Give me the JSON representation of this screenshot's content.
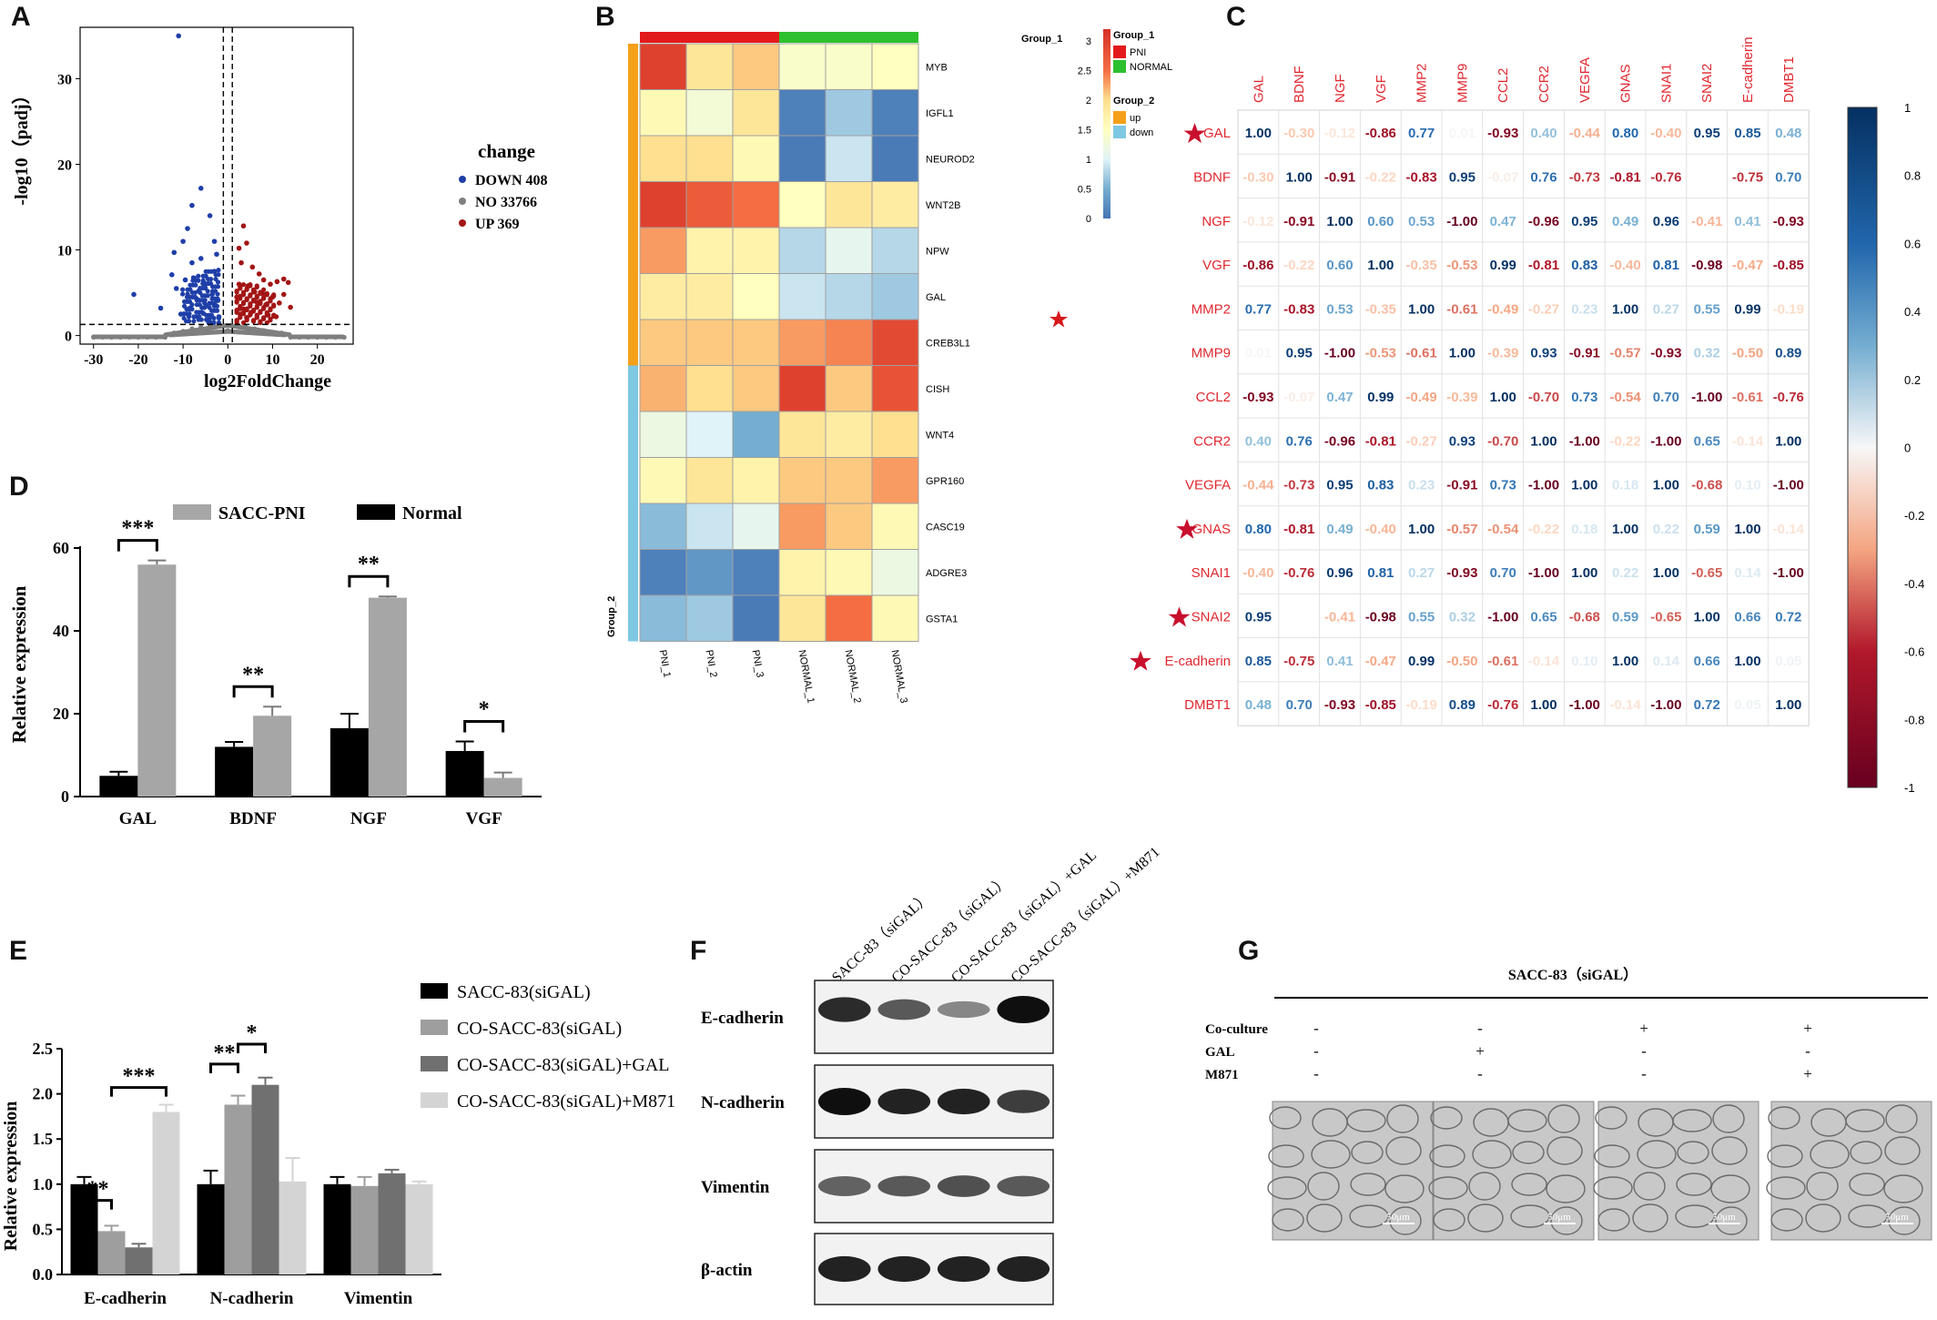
{
  "panel_labels": {
    "a": "A",
    "b": "B",
    "c": "C",
    "d": "D",
    "e": "E",
    "f": "F",
    "g": "G"
  },
  "chart_data": [
    {
      "id": "A",
      "type": "scatter",
      "title": "",
      "xlabel": "log2FoldChange",
      "ylabel": "-log10（padj）",
      "xlim": [
        -33,
        28
      ],
      "ylim": [
        -1,
        36
      ],
      "xticks": [
        "-30",
        "-20",
        "-10",
        "0",
        "10",
        "20"
      ],
      "yticks": [
        "0",
        "10",
        "20",
        "30"
      ],
      "legend": {
        "title": "change",
        "placement": "right",
        "entries": [
          {
            "label": "DOWN 408",
            "color": "#1f3fa8"
          },
          {
            "label": "NO 33766",
            "color": "#7f7f7f"
          },
          {
            "label": "UP 369",
            "color": "#a31515"
          }
        ]
      },
      "thresholds": {
        "x": [
          -1,
          1
        ],
        "y": 1.3
      },
      "series": [
        {
          "name": "DOWN 408",
          "color": "#1f3fa8",
          "points": [
            [
              -11,
              35
            ],
            [
              -21,
              4.8
            ],
            [
              -15,
              3.2
            ],
            [
              -12,
              9.7
            ],
            [
              -10,
              11
            ],
            [
              -9,
              12.5
            ],
            [
              -8,
              15.2
            ],
            [
              -6,
              17.2
            ],
            [
              -4,
              14
            ],
            [
              -3,
              11
            ],
            [
              -2.5,
              9.5
            ],
            [
              -6,
              9
            ],
            [
              -8,
              8.5
            ],
            [
              -12.5,
              7.1
            ],
            [
              -7,
              4.3
            ],
            [
              -5,
              6
            ],
            [
              -3,
              7.5
            ],
            [
              -4.5,
              3.5
            ],
            [
              -8.5,
              3.2
            ],
            [
              -10.5,
              2.5
            ],
            [
              -2,
              2.2
            ],
            [
              -6.5,
              5.2
            ],
            [
              -3.5,
              4.8
            ],
            [
              -9.5,
              6.5
            ],
            [
              -5.5,
              2.6
            ],
            [
              -7.5,
              6.7
            ],
            [
              -2.2,
              4.1
            ],
            [
              -11.5,
              5.5
            ],
            [
              -4,
              2.1
            ]
          ]
        },
        {
          "name": "UP 369",
          "color": "#a31515",
          "points": [
            [
              3.5,
              12.8
            ],
            [
              4.2,
              10.8
            ],
            [
              2.5,
              10.2
            ],
            [
              3,
              8.5
            ],
            [
              5.5,
              8
            ],
            [
              7,
              7.2
            ],
            [
              8,
              6.5
            ],
            [
              9.5,
              6
            ],
            [
              11,
              6.3
            ],
            [
              12.5,
              6.6
            ],
            [
              13.5,
              6.2
            ],
            [
              14,
              3.3
            ],
            [
              6,
              5.1
            ],
            [
              4.5,
              5.8
            ],
            [
              2.5,
              6
            ],
            [
              10,
              4.5
            ],
            [
              8.5,
              3.6
            ],
            [
              6.5,
              3.9
            ],
            [
              3.5,
              3.1
            ],
            [
              2,
              4.5
            ],
            [
              5.2,
              2.7
            ],
            [
              11.5,
              3.8
            ],
            [
              12.5,
              4.8
            ],
            [
              9,
              2.4
            ],
            [
              7.8,
              4.9
            ],
            [
              4.2,
              2.1
            ],
            [
              2.8,
              2.5
            ],
            [
              10.8,
              2.2
            ]
          ]
        },
        {
          "name": "NO 33766",
          "color": "#7f7f7f",
          "points": [
            [
              -30,
              -0.2
            ],
            [
              -28,
              -0.2
            ],
            [
              -26,
              -0.2
            ],
            [
              -24,
              -0.2
            ],
            [
              -22,
              -0.2
            ],
            [
              -20,
              -0.2
            ],
            [
              -18,
              -0.2
            ],
            [
              -16,
              -0.2
            ],
            [
              -14,
              -0.2
            ],
            [
              -12,
              0.3
            ],
            [
              -10,
              0.5
            ],
            [
              -8,
              0.8
            ],
            [
              -6,
              1
            ],
            [
              -4,
              1.2
            ],
            [
              -2,
              1.1
            ],
            [
              0,
              0.6
            ],
            [
              2,
              1.1
            ],
            [
              4,
              1
            ],
            [
              6,
              0.8
            ],
            [
              8,
              0.6
            ],
            [
              10,
              0.4
            ],
            [
              12,
              0.3
            ],
            [
              14,
              -0.2
            ],
            [
              16,
              -0.2
            ],
            [
              18,
              -0.2
            ],
            [
              20,
              -0.2
            ],
            [
              22,
              -0.2
            ],
            [
              24,
              -0.2
            ],
            [
              26,
              -0.2
            ]
          ]
        }
      ]
    },
    {
      "id": "B",
      "type": "heatmap",
      "columns": [
        "PNI_1",
        "PNI_2",
        "PNI_3",
        "NORMAL_1",
        "NORMAL_2",
        "NORMAL_3"
      ],
      "rows": [
        "MYB",
        "IGFL1",
        "NEUROD2",
        "WNT2B",
        "NPW",
        "GAL",
        "CREB3L1",
        "CISH",
        "WNT4",
        "GPR160",
        "CASC19",
        "ADGRE3",
        "GSTA1"
      ],
      "row_star": "GAL",
      "group1": {
        "title": "Group_1",
        "values": [
          "PNI",
          "PNI",
          "PNI",
          "NORMAL",
          "NORMAL",
          "NORMAL"
        ],
        "legend": [
          {
            "label": "PNI",
            "color": "#e31a1c"
          },
          {
            "label": "NORMAL",
            "color": "#2ec02e"
          }
        ]
      },
      "group2": {
        "title": "Group_2",
        "values": [
          "up",
          "up",
          "up",
          "up",
          "up",
          "up",
          "up",
          "down",
          "down",
          "down",
          "down",
          "down",
          "down"
        ],
        "legend": [
          {
            "label": "up",
            "color": "#f5a01a"
          },
          {
            "label": "down",
            "color": "#7ec8e3"
          }
        ]
      },
      "colorbar": {
        "min": 0,
        "max": 3.2,
        "ticks": [
          "0",
          "0.5",
          "1",
          "1.5",
          "2",
          "2.5",
          "3"
        ]
      },
      "values": [
        [
          3.0,
          1.9,
          2.1,
          1.4,
          1.4,
          1.5
        ],
        [
          1.6,
          1.3,
          1.9,
          0.1,
          0.7,
          0.1
        ],
        [
          2.0,
          2.0,
          1.6,
          0.05,
          0.9,
          0.05
        ],
        [
          3.0,
          2.7,
          2.5,
          1.5,
          1.9,
          1.8
        ],
        [
          2.3,
          1.7,
          1.7,
          0.8,
          1.1,
          0.8
        ],
        [
          1.8,
          1.8,
          1.5,
          0.9,
          0.8,
          0.7
        ],
        [
          2.1,
          2.1,
          2.1,
          2.3,
          2.4,
          2.9
        ],
        [
          2.2,
          2.0,
          2.1,
          3.0,
          2.1,
          2.8
        ],
        [
          1.2,
          1.0,
          0.5,
          1.9,
          1.8,
          2.0
        ],
        [
          1.6,
          1.9,
          1.7,
          2.1,
          2.1,
          2.3
        ],
        [
          0.6,
          0.9,
          1.1,
          2.3,
          2.1,
          1.6
        ],
        [
          0.1,
          0.3,
          0.1,
          1.7,
          1.6,
          1.2
        ],
        [
          0.6,
          0.7,
          0.05,
          1.9,
          2.5,
          1.6
        ]
      ]
    },
    {
      "id": "C",
      "type": "table",
      "genes": [
        "GAL",
        "BDNF",
        "NGF",
        "VGF",
        "MMP2",
        "MMP9",
        "CCL2",
        "CCR2",
        "VEGFA",
        "GNAS",
        "SNAI1",
        "SNAI2",
        "E-cadherin",
        "DMBT1"
      ],
      "starred": [
        "GAL",
        "GNAS",
        "SNAI2",
        "E-cadherin"
      ],
      "colorbar": {
        "min": -1,
        "max": 1,
        "ticks": [
          "1",
          "0.8",
          "0.6",
          "0.4",
          "0.2",
          "0",
          "-0.2",
          "-0.4",
          "-0.6",
          "-0.8",
          "-1"
        ]
      },
      "matrix": [
        [
          "1.00",
          "-0.30",
          "-0.12",
          "-0.86",
          "0.77",
          "0.01",
          "-0.93",
          "0.40",
          "-0.44",
          "0.80",
          "-0.40",
          "0.95",
          "0.85",
          "0.48"
        ],
        [
          "-0.30",
          "1.00",
          "-0.91",
          "-0.22",
          "-0.83",
          "0.95",
          "-0.07",
          "0.76",
          "-0.73",
          "-0.81",
          "-0.76",
          "",
          "-0.75",
          "0.70"
        ],
        [
          "-0.12",
          "-0.91",
          "1.00",
          "0.60",
          "0.53",
          "-1.00",
          "0.47",
          "-0.96",
          "0.95",
          "0.49",
          "0.96",
          "-0.41",
          "0.41",
          "-0.93"
        ],
        [
          "-0.86",
          "-0.22",
          "0.60",
          "1.00",
          "-0.35",
          "-0.53",
          "0.99",
          "-0.81",
          "0.83",
          "-0.40",
          "0.81",
          "-0.98",
          "-0.47",
          "-0.85"
        ],
        [
          "0.77",
          "-0.83",
          "0.53",
          "-0.35",
          "1.00",
          "-0.61",
          "-0.49",
          "-0.27",
          "0.23",
          "1.00",
          "0.27",
          "0.55",
          "0.99",
          "-0.19"
        ],
        [
          "0.01",
          "0.95",
          "-1.00",
          "-0.53",
          "-0.61",
          "1.00",
          "-0.39",
          "0.93",
          "-0.91",
          "-0.57",
          "-0.93",
          "0.32",
          "-0.50",
          "0.89"
        ],
        [
          "-0.93",
          "-0.07",
          "0.47",
          "0.99",
          "-0.49",
          "-0.39",
          "1.00",
          "-0.70",
          "0.73",
          "-0.54",
          "0.70",
          "-1.00",
          "-0.61",
          "-0.76"
        ],
        [
          "0.40",
          "0.76",
          "-0.96",
          "-0.81",
          "-0.27",
          "0.93",
          "-0.70",
          "1.00",
          "-1.00",
          "-0.22",
          "-1.00",
          "0.65",
          "-0.14",
          "1.00"
        ],
        [
          "-0.44",
          "-0.73",
          "0.95",
          "0.83",
          "0.23",
          "-0.91",
          "0.73",
          "-1.00",
          "1.00",
          "0.18",
          "1.00",
          "-0.68",
          "0.10",
          "-1.00"
        ],
        [
          "0.80",
          "-0.81",
          "0.49",
          "-0.40",
          "1.00",
          "-0.57",
          "-0.54",
          "-0.22",
          "0.18",
          "1.00",
          "0.22",
          "0.59",
          "1.00",
          "-0.14"
        ],
        [
          "-0.40",
          "-0.76",
          "0.96",
          "0.81",
          "0.27",
          "-0.93",
          "0.70",
          "-1.00",
          "1.00",
          "0.22",
          "1.00",
          "-0.65",
          "0.14",
          "-1.00"
        ],
        [
          "0.95",
          "",
          "-0.41",
          "-0.98",
          "0.55",
          "0.32",
          "-1.00",
          "0.65",
          "-0.68",
          "0.59",
          "-0.65",
          "1.00",
          "0.66",
          "0.72"
        ],
        [
          "0.85",
          "-0.75",
          "0.41",
          "-0.47",
          "0.99",
          "-0.50",
          "-0.61",
          "-0.14",
          "0.10",
          "1.00",
          "0.14",
          "0.66",
          "1.00",
          "0.05"
        ],
        [
          "0.48",
          "0.70",
          "-0.93",
          "-0.85",
          "-0.19",
          "0.89",
          "-0.76",
          "1.00",
          "-1.00",
          "-0.14",
          "-1.00",
          "0.72",
          "0.05",
          "1.00"
        ]
      ]
    },
    {
      "id": "D",
      "type": "bar",
      "categories": [
        "GAL",
        "BDNF",
        "NGF",
        "VGF"
      ],
      "ylabel": "Relative expression",
      "ylim": [
        0,
        60
      ],
      "yticks": [
        "0",
        "20",
        "40",
        "60"
      ],
      "series": [
        {
          "name": "Normal",
          "color": "#000000",
          "values": [
            5,
            12,
            16.5,
            11
          ],
          "errors": [
            1,
            1.2,
            3.5,
            2.3
          ]
        },
        {
          "name": "SACC-PNI",
          "color": "#a6a6a6",
          "values": [
            56,
            19.5,
            48,
            4.5
          ],
          "errors": [
            1,
            2.2,
            0.3,
            1.3
          ]
        }
      ],
      "significance": [
        "***",
        "**",
        "**",
        "*"
      ]
    },
    {
      "id": "E",
      "type": "bar",
      "categories": [
        "E-cadherin",
        "N-cadherin",
        "Vimentin"
      ],
      "ylabel": "Relative expression",
      "ylim": [
        0,
        2.5
      ],
      "yticks": [
        "0.0",
        "0.5",
        "1.0",
        "1.5",
        "2.0",
        "2.5"
      ],
      "series": [
        {
          "name": "SACC-83(siGAL)",
          "color": "#000000",
          "values": [
            1.0,
            1.0,
            1.0
          ],
          "errors": [
            0.08,
            0.15,
            0.08
          ]
        },
        {
          "name": "CO-SACC-83(siGAL)",
          "color": "#9e9e9e",
          "values": [
            0.48,
            1.88,
            0.98
          ],
          "errors": [
            0.06,
            0.1,
            0.1
          ]
        },
        {
          "name": "CO-SACC-83(siGAL)+GAL",
          "color": "#707070",
          "values": [
            0.3,
            2.1,
            1.12
          ],
          "errors": [
            0.04,
            0.08,
            0.04
          ]
        },
        {
          "name": "CO-SACC-83(siGAL)+M871",
          "color": "#d4d4d4",
          "values": [
            1.8,
            1.03,
            1.0
          ],
          "errors": [
            0.08,
            0.26,
            0.03
          ]
        }
      ],
      "significance": [
        {
          "label": "**",
          "category": "E-cadherin",
          "from": 0,
          "to": 1,
          "level": 0.82
        },
        {
          "label": "***",
          "category": "E-cadherin",
          "from": 1,
          "to": 3,
          "level": 2.07
        },
        {
          "label": "**",
          "category": "N-cadherin",
          "from": 0,
          "to": 1,
          "level": 2.33
        },
        {
          "label": "*",
          "category": "N-cadherin",
          "from": 1,
          "to": 2,
          "level": 2.55
        }
      ]
    }
  ],
  "western_blot": {
    "lane_labels": [
      "SACC-83（siGAL）",
      "CO-SACC-83（siGAL）",
      "CO-SACC-83（siGAL）+GAL",
      "CO-SACC-83（siGAL）+M871"
    ],
    "rows": [
      {
        "label": "E-cadherin",
        "intensity": [
          0.85,
          0.6,
          0.35,
          1.0
        ]
      },
      {
        "label": "N-cadherin",
        "intensity": [
          1.0,
          0.9,
          0.9,
          0.75
        ]
      },
      {
        "label": "Vimentin",
        "intensity": [
          0.55,
          0.6,
          0.65,
          0.6
        ]
      },
      {
        "label": "β-actin",
        "intensity": [
          0.9,
          0.9,
          0.9,
          0.9
        ]
      }
    ]
  },
  "micrographs": {
    "title": "SACC-83（siGAL）",
    "row_labels": [
      "Co-culture",
      "GAL",
      "M871"
    ],
    "conditions": [
      [
        "-",
        "-",
        "-"
      ],
      [
        "-",
        "+",
        "-"
      ],
      [
        "+",
        "-",
        "-"
      ],
      [
        "+",
        "-",
        "+"
      ]
    ],
    "scale_label": "50μm"
  }
}
